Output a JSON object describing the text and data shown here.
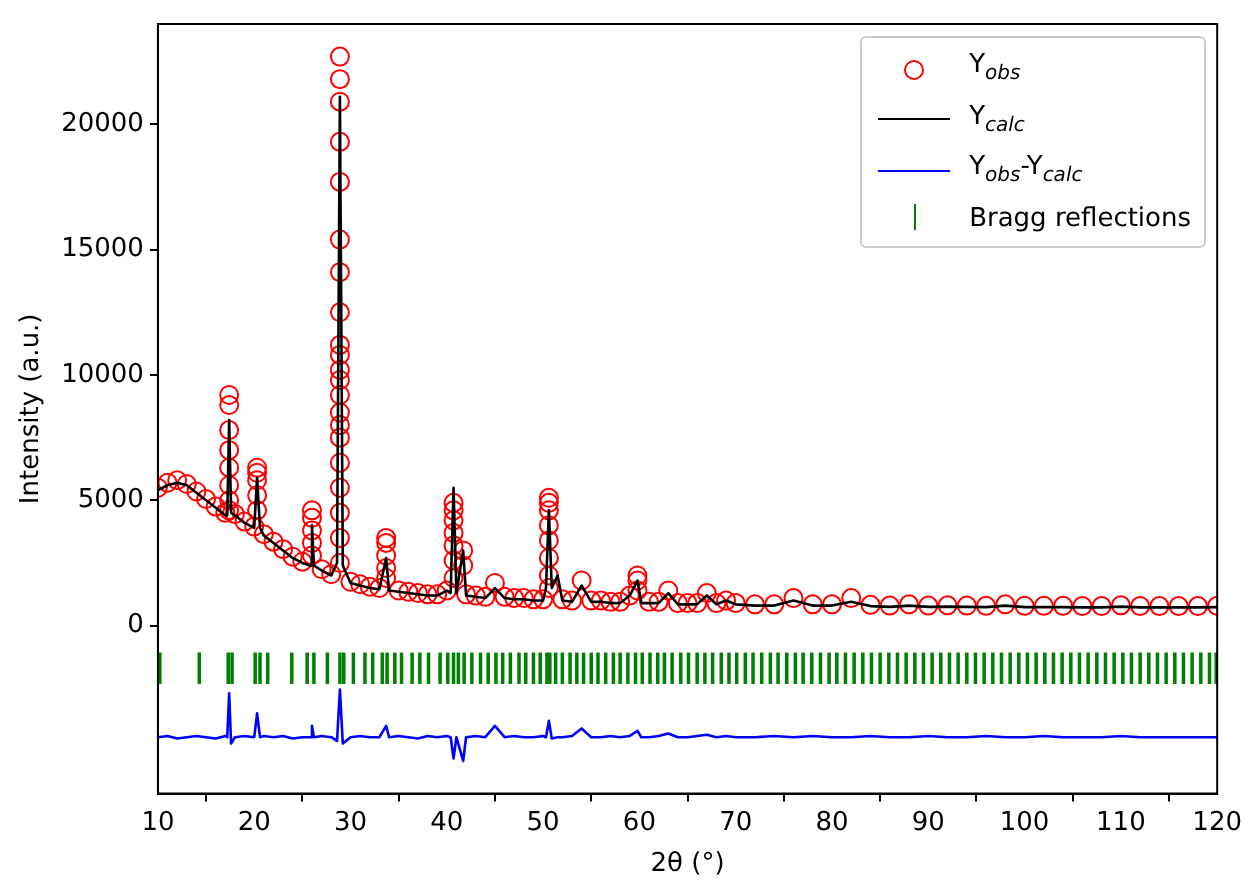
{
  "chart_data": {
    "type": "scatter",
    "xlabel": "2θ (°)",
    "ylabel": "Intensity (a.u.)",
    "xlim": [
      10,
      120
    ],
    "ylim": [
      -6700,
      24000
    ],
    "xticks": [
      10,
      20,
      30,
      40,
      50,
      60,
      70,
      80,
      90,
      100,
      110,
      120
    ],
    "yticks": [
      0,
      5000,
      10000,
      15000,
      20000
    ],
    "grid": false,
    "legend": "top right",
    "series": [
      {
        "name": "Y$_{obs}$",
        "marker": "circle",
        "color": "#ff0000",
        "x": [
          10,
          11,
          12,
          13,
          14,
          15,
          16,
          17,
          17.4,
          17.4,
          17.4,
          17.4,
          17.4,
          17.4,
          17.4,
          17.4,
          18,
          19,
          20,
          20.3,
          20.3,
          20.3,
          20.3,
          20.3,
          21,
          22,
          23,
          24,
          25,
          26,
          26,
          26,
          26,
          26,
          27,
          28,
          28.9,
          28.9,
          28.9,
          28.9,
          28.9,
          28.9,
          28.9,
          28.9,
          28.9,
          28.9,
          28.9,
          28.9,
          28.9,
          28.9,
          28.9,
          28.9,
          28.9,
          28.9,
          28.9,
          28.9,
          28.9,
          30,
          31,
          32,
          33,
          33.7,
          33.7,
          33.7,
          33.7,
          33.7,
          35,
          36,
          37,
          38,
          39,
          40,
          40.7,
          40.7,
          40.7,
          40.7,
          40.7,
          40.7,
          40.7,
          41.7,
          41.7,
          42,
          43,
          44,
          45,
          46,
          47,
          48,
          49,
          50,
          50.6,
          50.6,
          50.6,
          50.6,
          50.6,
          50.6,
          50.6,
          50.6,
          52,
          53,
          54,
          55,
          56,
          57,
          58,
          59,
          59.8,
          59.8,
          59.8,
          61,
          62,
          63,
          64,
          65,
          66,
          67,
          68,
          69,
          70,
          72,
          74,
          76,
          78,
          80,
          82,
          84,
          86,
          88,
          90,
          92,
          94,
          96,
          98,
          100,
          102,
          104,
          106,
          108,
          110,
          112,
          114,
          116,
          118,
          120
        ],
        "values": [
          5500,
          5700,
          5800,
          5650,
          5350,
          5050,
          4750,
          4500,
          9200,
          8800,
          7800,
          7000,
          6300,
          5600,
          5000,
          4600,
          4450,
          4150,
          3950,
          6300,
          6100,
          5800,
          5200,
          4600,
          3650,
          3350,
          3050,
          2750,
          2550,
          4600,
          4300,
          3800,
          3300,
          2800,
          2250,
          2050,
          22700,
          21800,
          20900,
          19300,
          17700,
          15400,
          14100,
          12500,
          11200,
          10800,
          10200,
          9800,
          9200,
          8500,
          8000,
          7500,
          6500,
          5500,
          4500,
          3500,
          2500,
          1750,
          1650,
          1550,
          1500,
          3500,
          3300,
          2800,
          2300,
          1900,
          1400,
          1350,
          1300,
          1250,
          1250,
          1400,
          4900,
          4600,
          4200,
          3700,
          3200,
          2600,
          1900,
          3000,
          2400,
          1250,
          1200,
          1150,
          1700,
          1150,
          1100,
          1100,
          1050,
          1050,
          5100,
          4900,
          4600,
          4000,
          3400,
          2700,
          2000,
          1500,
          1050,
          1000,
          1800,
          1000,
          1000,
          950,
          950,
          1200,
          2000,
          1800,
          1400,
          950,
          950,
          1400,
          900,
          900,
          900,
          1300,
          900,
          1000,
          900,
          850,
          850,
          1100,
          850,
          850,
          1100,
          830,
          800,
          850,
          800,
          810,
          800,
          790,
          850,
          790,
          790,
          790,
          780,
          780,
          810,
          780,
          780,
          780,
          780,
          790
        ]
      },
      {
        "name": "Y$_{calc}$",
        "type": "line",
        "marker": "none",
        "line_style": "solid",
        "color": "#000000",
        "values": [
          5400,
          5600,
          5700,
          5600,
          5300,
          5000,
          4700,
          4400,
          4400,
          8200,
          4500,
          4400,
          4100,
          3900,
          5900,
          3900,
          3600,
          3300,
          3000,
          2700,
          2500,
          2400,
          4000,
          2400,
          2200,
          2000,
          2500,
          21100,
          2400,
          1700,
          1600,
          1500,
          1450,
          2700,
          1400,
          1350,
          1300,
          1250,
          1200,
          1200,
          1400,
          1300,
          5500,
          1300,
          3000,
          1200,
          1150,
          1100,
          1500,
          1100,
          1050,
          1050,
          1000,
          1000,
          1500,
          4600,
          1500,
          2000,
          1000,
          950,
          1600,
          950,
          950,
          900,
          900,
          1200,
          1800,
          900,
          900,
          900,
          1300,
          850,
          850,
          850,
          1200,
          850,
          1000,
          850,
          800,
          800,
          1000,
          800,
          800,
          950,
          780,
          750,
          800,
          750,
          760,
          750,
          740,
          800,
          740,
          740,
          740,
          730,
          730,
          760,
          730,
          730,
          730,
          730,
          740
        ]
      },
      {
        "name": "Y$_{obs}$-Y$_{calc}$",
        "type": "line",
        "marker": "none",
        "line_style": "solid",
        "color": "#0000ff",
        "values": [
          -4450,
          -4400,
          -4500,
          -4450,
          -4400,
          -4450,
          -4500,
          -4400,
          -4450,
          -2700,
          -4700,
          -4450,
          -4400,
          -4450,
          -3500,
          -4450,
          -4400,
          -4450,
          -4400,
          -4500,
          -4450,
          -4450,
          -4000,
          -4450,
          -4400,
          -4450,
          -4600,
          -2550,
          -4700,
          -4450,
          -4400,
          -4450,
          -4450,
          -4000,
          -4450,
          -4400,
          -4450,
          -4500,
          -4400,
          -4450,
          -4400,
          -4450,
          -5300,
          -4450,
          -5400,
          -4450,
          -4400,
          -4450,
          -4000,
          -4450,
          -4400,
          -4450,
          -4450,
          -4400,
          -4450,
          -3800,
          -4500,
          -4450,
          -4450,
          -4400,
          -4100,
          -4450,
          -4450,
          -4400,
          -4450,
          -4400,
          -4200,
          -4450,
          -4450,
          -4400,
          -4300,
          -4450,
          -4450,
          -4400,
          -4350,
          -4450,
          -4400,
          -4450,
          -4450,
          -4400,
          -4450,
          -4400,
          -4450,
          -4450,
          -4400,
          -4450,
          -4450,
          -4400,
          -4450,
          -4450,
          -4400,
          -4450,
          -4450,
          -4400,
          -4450,
          -4450,
          -4450,
          -4400,
          -4450,
          -4450,
          -4450,
          -4450,
          -4450
        ]
      },
      {
        "name": "Bragg reflections",
        "type": "bar",
        "color": "#008000",
        "x": [
          10.2,
          14.3,
          17.3,
          17.7,
          20.1,
          20.6,
          21.4,
          23.9,
          25.5,
          26.2,
          27.6,
          28.9,
          29.3,
          30.3,
          31.5,
          32.3,
          33.3,
          33.8,
          34.6,
          35.3,
          36.4,
          37.2,
          38.1,
          39.3,
          40.1,
          40.7,
          41.2,
          41.8,
          42.6,
          43.5,
          44.3,
          45.1,
          45.8,
          46.6,
          47.5,
          48.2,
          49.0,
          49.7,
          50.4,
          50.7,
          51.3,
          52.0,
          52.8,
          53.5,
          54.2,
          55.0,
          55.7,
          56.5,
          57.3,
          58.0,
          58.8,
          59.6,
          60.3,
          61.1,
          61.9,
          62.6,
          63.4,
          64.3,
          65.1,
          66.0,
          66.8,
          67.6,
          68.5,
          69.3,
          70.1,
          71.0,
          71.8,
          72.7,
          73.6,
          74.4,
          75.3,
          76.2,
          77.0,
          77.9,
          78.8,
          79.7,
          80.5,
          81.4,
          82.3,
          83.2,
          84.1,
          85.0,
          85.9,
          86.8,
          87.7,
          88.6,
          89.5,
          90.4,
          91.3,
          92.2,
          93.1,
          94.0,
          94.9,
          95.8,
          96.7,
          97.6,
          98.5,
          99.4,
          100.3,
          101.2,
          102.1,
          103.0,
          103.9,
          104.8,
          105.7,
          106.6,
          107.5,
          108.4,
          109.3,
          110.2,
          111.1,
          112.0,
          112.9,
          113.8,
          114.7,
          115.6,
          116.5,
          117.4,
          118.3,
          119.2,
          119.9
        ],
        "values": [
          1200,
          1200,
          1200,
          1200,
          1200,
          1200,
          1200,
          1200,
          1200,
          1200,
          1200,
          1200,
          1200,
          1200,
          1200,
          1200,
          1200,
          1200,
          1200,
          1200,
          1200,
          1200,
          1200,
          1200,
          1200,
          1200,
          1200,
          1200,
          1200,
          1200,
          1200,
          1200,
          1200,
          1200,
          1200,
          1200,
          1200,
          1200,
          1200,
          1200,
          1200,
          1200,
          1200,
          1200,
          1200,
          1200,
          1200,
          1200,
          1200,
          1200,
          1200,
          1200,
          1200,
          1200,
          1200,
          1200,
          1200,
          1200,
          1200,
          1200,
          1200,
          1200,
          1200,
          1200,
          1200,
          1200,
          1200,
          1200,
          1200,
          1200,
          1200,
          1200,
          1200,
          1200,
          1200,
          1200,
          1200,
          1200,
          1200,
          1200,
          1200,
          1200,
          1200,
          1200,
          1200,
          1200,
          1200,
          1200,
          1200,
          1200,
          1200,
          1200,
          1200,
          1200,
          1200,
          1200,
          1200,
          1200,
          1200,
          1200,
          1200,
          1200,
          1200,
          1200,
          1200,
          1200,
          1200,
          1200,
          1200,
          1200,
          1200,
          1200,
          1200,
          1200,
          1200,
          1200,
          1200,
          1200,
          1200,
          1200,
          1200
        ],
        "base": [
          -2300,
          -2300,
          -2300,
          -2300,
          -2300,
          -2300,
          -2300,
          -2300,
          -2300,
          -2300,
          -2300,
          -2300,
          -2300,
          -2300,
          -2300,
          -2300,
          -2300,
          -2300,
          -2300,
          -2300,
          -2300,
          -2300,
          -2300,
          -2300,
          -2300,
          -2300,
          -2300,
          -2300,
          -2300,
          -2300,
          -2300,
          -2300,
          -2300,
          -2300,
          -2300,
          -2300,
          -2300,
          -2300,
          -2300,
          -2300,
          -2300,
          -2300,
          -2300,
          -2300,
          -2300,
          -2300,
          -2300,
          -2300,
          -2300,
          -2300,
          -2300,
          -2300,
          -2300,
          -2300,
          -2300,
          -2300,
          -2300,
          -2300,
          -2300,
          -2300,
          -2300,
          -2300,
          -2300,
          -2300,
          -2300,
          -2300,
          -2300,
          -2300,
          -2300,
          -2300,
          -2300,
          -2300,
          -2300,
          -2300,
          -2300,
          -2300,
          -2300,
          -2300,
          -2300,
          -2300,
          -2300,
          -2300,
          -2300,
          -2300,
          -2300,
          -2300,
          -2300,
          -2300,
          -2300,
          -2300,
          -2300,
          -2300,
          -2300,
          -2300,
          -2300,
          -2300,
          -2300,
          -2300,
          -2300,
          -2300,
          -2300,
          -2300,
          -2300,
          -2300,
          -2300,
          -2300,
          -2300,
          -2300,
          -2300,
          -2300,
          -2300,
          -2300,
          -2300,
          -2300,
          -2300,
          -2300,
          -2300,
          -2300,
          -2300,
          -2300,
          -2300
        ]
      }
    ],
    "x": [
      10,
      11,
      12,
      13,
      14,
      15,
      16,
      17,
      17.2,
      17.4,
      17.6,
      18,
      19,
      20,
      20.3,
      20.6,
      21,
      22,
      23,
      24,
      25,
      25.8,
      26,
      26.2,
      27,
      28,
      28.6,
      28.9,
      29.2,
      30,
      31,
      32,
      33,
      33.7,
      34,
      35,
      36,
      37,
      38,
      39,
      40,
      40.4,
      40.7,
      41,
      41.7,
      42,
      43,
      44,
      45,
      46,
      47,
      48,
      49,
      50,
      50.3,
      50.6,
      50.9,
      51.5,
      52,
      53,
      54,
      55,
      56,
      57,
      58,
      59,
      59.8,
      60.2,
      61,
      62,
      63,
      64,
      65,
      66,
      67,
      68,
      69,
      70,
      72,
      74,
      76,
      78,
      80,
      82,
      84,
      86,
      88,
      90,
      92,
      94,
      96,
      98,
      100,
      102,
      104,
      106,
      108,
      110,
      112,
      114,
      116,
      118,
      120
    ]
  }
}
